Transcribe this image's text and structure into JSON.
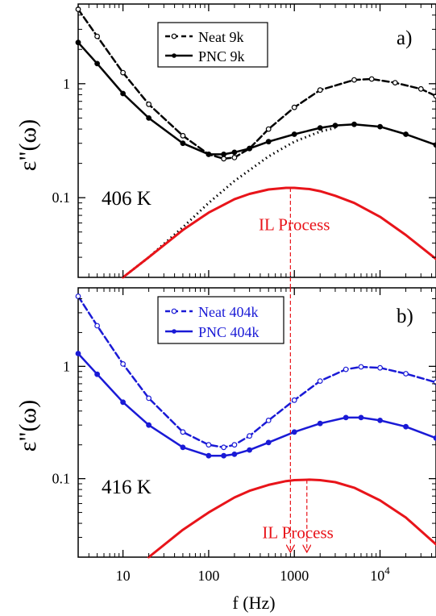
{
  "figure": {
    "xlabel": "f (Hz)",
    "x_ticks": [
      {
        "value": 10,
        "label": "10",
        "sup": ""
      },
      {
        "value": 100,
        "label": "100",
        "sup": ""
      },
      {
        "value": 1000,
        "label": "1000",
        "sup": ""
      },
      {
        "value": 10000,
        "label": "10",
        "sup": "4"
      }
    ]
  },
  "chart_data": [
    {
      "type": "line",
      "panel_label": "a)",
      "temperature_label": "406 K",
      "ylabel": "ε\"(ω)",
      "x_scale": "log",
      "y_scale": "log",
      "xlim": [
        3,
        45000
      ],
      "ylim": [
        0.02,
        5
      ],
      "y_ticks": [
        {
          "value": 0.1,
          "label": "0.1"
        },
        {
          "value": 1,
          "label": "1"
        }
      ],
      "legend": {
        "position": "top-left",
        "color": "#000000",
        "entries": [
          "Neat 9k",
          "PNC 9k"
        ]
      },
      "series": [
        {
          "name": "Neat 9k",
          "style": "dashed-open-circle",
          "color": "#000000",
          "x": [
            3,
            5,
            10,
            20,
            50,
            100,
            150,
            200,
            300,
            500,
            1000,
            2000,
            5000,
            8000,
            15000,
            30000,
            45000
          ],
          "values": [
            4.5,
            2.6,
            1.25,
            0.66,
            0.35,
            0.24,
            0.22,
            0.225,
            0.27,
            0.4,
            0.62,
            0.88,
            1.08,
            1.1,
            1.02,
            0.9,
            0.78
          ]
        },
        {
          "name": "PNC 9k",
          "style": "solid-filled-circle",
          "color": "#000000",
          "x": [
            3,
            5,
            10,
            20,
            50,
            100,
            150,
            200,
            300,
            500,
            1000,
            2000,
            3000,
            5000,
            10000,
            20000,
            45000
          ],
          "values": [
            2.3,
            1.5,
            0.82,
            0.5,
            0.3,
            0.24,
            0.24,
            0.25,
            0.27,
            0.31,
            0.36,
            0.41,
            0.43,
            0.44,
            0.42,
            0.36,
            0.29
          ]
        },
        {
          "name": "",
          "style": "dotted",
          "color": "#000000",
          "x": [
            10,
            20,
            50,
            100,
            200,
            500,
            1000,
            2000,
            3000
          ],
          "values": [
            0.02,
            0.03,
            0.055,
            0.09,
            0.14,
            0.23,
            0.31,
            0.38,
            0.41
          ]
        },
        {
          "name": "IL Process",
          "style": "solid",
          "color": "#e8141a",
          "x": [
            10,
            20,
            50,
            100,
            200,
            300,
            500,
            800,
            1000,
            1500,
            2000,
            3000,
            5000,
            10000,
            20000,
            45000
          ],
          "values": [
            0.02,
            0.03,
            0.052,
            0.074,
            0.097,
            0.108,
            0.118,
            0.122,
            0.122,
            0.119,
            0.114,
            0.104,
            0.09,
            0.068,
            0.047,
            0.029
          ]
        }
      ],
      "annotations": [
        {
          "text": "IL Process",
          "color": "#e8141a",
          "x": 1000,
          "y": 0.058
        },
        {
          "type": "vline",
          "x": 900,
          "y_from": 0.122,
          "style": "dashed",
          "color": "#e8141a"
        }
      ]
    },
    {
      "type": "line",
      "panel_label": "b)",
      "temperature_label": "416 K",
      "ylabel": "ε\"(ω)",
      "x_scale": "log",
      "y_scale": "log",
      "xlim": [
        3,
        45000
      ],
      "ylim": [
        0.02,
        5
      ],
      "y_ticks": [
        {
          "value": 0.1,
          "label": "0.1"
        },
        {
          "value": 1,
          "label": "1"
        }
      ],
      "legend": {
        "position": "top-left",
        "color": "#1a1ad6",
        "entries": [
          "Neat 404k",
          "PNC 404k"
        ]
      },
      "series": [
        {
          "name": "Neat 404k",
          "style": "dashed-open-circle",
          "color": "#1a1ad6",
          "x": [
            3,
            5,
            10,
            20,
            50,
            100,
            150,
            200,
            300,
            500,
            1000,
            2000,
            4000,
            6000,
            10000,
            20000,
            45000
          ],
          "values": [
            4.2,
            2.3,
            1.05,
            0.52,
            0.26,
            0.2,
            0.19,
            0.2,
            0.24,
            0.33,
            0.5,
            0.74,
            0.94,
            0.99,
            0.97,
            0.86,
            0.72
          ]
        },
        {
          "name": "PNC 404k",
          "style": "solid-filled-circle",
          "color": "#1a1ad6",
          "x": [
            3,
            5,
            10,
            20,
            50,
            100,
            150,
            200,
            300,
            500,
            1000,
            2000,
            4000,
            6000,
            10000,
            20000,
            45000
          ],
          "values": [
            1.3,
            0.85,
            0.48,
            0.3,
            0.19,
            0.16,
            0.16,
            0.165,
            0.18,
            0.21,
            0.26,
            0.31,
            0.35,
            0.35,
            0.33,
            0.29,
            0.23
          ]
        },
        {
          "name": "IL Process",
          "style": "solid",
          "color": "#e8141a",
          "x": [
            20,
            50,
            100,
            200,
            300,
            500,
            800,
            1000,
            1500,
            2000,
            3000,
            5000,
            10000,
            20000,
            45000
          ],
          "values": [
            0.02,
            0.035,
            0.05,
            0.068,
            0.078,
            0.088,
            0.095,
            0.097,
            0.098,
            0.097,
            0.093,
            0.083,
            0.064,
            0.045,
            0.026
          ]
        }
      ],
      "annotations": [
        {
          "text": "IL Process",
          "color": "#e8141a",
          "x": 1100,
          "y": 0.033
        },
        {
          "type": "vline",
          "x": 900,
          "y_from": 5,
          "style": "dashed-arrow",
          "color": "#e8141a"
        },
        {
          "type": "vline",
          "x": 1400,
          "y_from": 0.098,
          "style": "dashed-arrow",
          "color": "#e8141a"
        }
      ]
    }
  ]
}
